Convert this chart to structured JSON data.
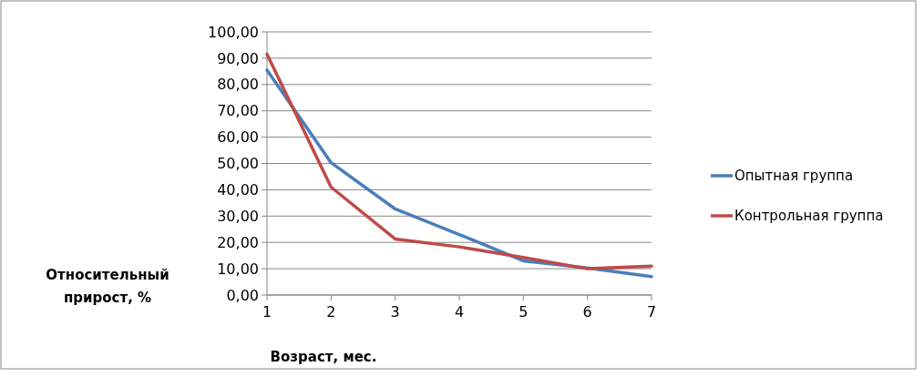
{
  "chart_data": {
    "type": "line",
    "xlabel": "Возраст, мес.",
    "ylabel": "Относительный прирост, %",
    "categories": [
      "1",
      "2",
      "3",
      "4",
      "5",
      "6",
      "7"
    ],
    "series": [
      {
        "name": "Опытная группа",
        "color": "#4a7ebb",
        "values": [
          85.5,
          50.3,
          32.7,
          23,
          13,
          10.3,
          7
        ]
      },
      {
        "name": "Контрольная группа",
        "color": "#be4b48",
        "values": [
          91.5,
          41,
          21.3,
          18.3,
          14.3,
          10,
          11
        ]
      }
    ],
    "ylim": [
      0,
      100
    ],
    "yticks": [
      {
        "value": 0,
        "label": "0,00"
      },
      {
        "value": 10,
        "label": "10,00"
      },
      {
        "value": 20,
        "label": "20,00"
      },
      {
        "value": 30,
        "label": "30,00"
      },
      {
        "value": 40,
        "label": "40,00"
      },
      {
        "value": 50,
        "label": "50,00"
      },
      {
        "value": 60,
        "label": "60,00"
      },
      {
        "value": 70,
        "label": "70,00"
      },
      {
        "value": 80,
        "label": "80,00"
      },
      {
        "value": 90,
        "label": "90,00"
      },
      {
        "value": 100,
        "label": "100,00"
      }
    ],
    "grid": "y",
    "legend": "right",
    "marker": "none",
    "line_style": "solid"
  }
}
